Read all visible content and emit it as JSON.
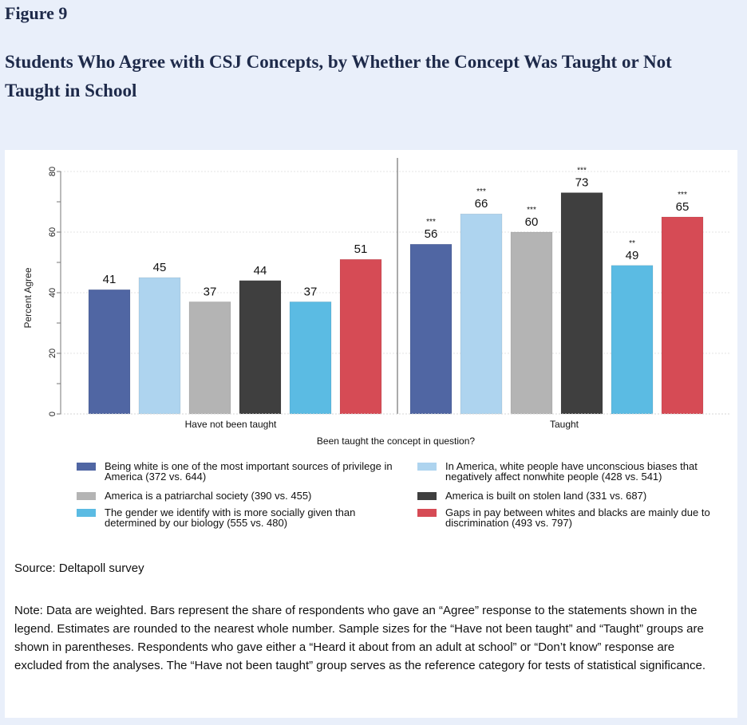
{
  "figure_label": "Figure 9",
  "figure_title": "Students Who Agree with CSJ Concepts, by Whether the Concept Was Taught or Not Taught in School",
  "chart_data": {
    "type": "bar",
    "ylabel": "Percent Agree",
    "xlabel": "Been taught the concept in question?",
    "ylim": [
      0,
      80
    ],
    "yticks": [
      0,
      20,
      40,
      60,
      80
    ],
    "grid": true,
    "legend_position": "bottom",
    "categories": [
      "Have not been taught",
      "Taught"
    ],
    "series": [
      {
        "name": "Being white is one of the most important sources of privilege in America (372 vs. 644)",
        "color": "#5066a3",
        "values": [
          41,
          56
        ],
        "labels": [
          "41",
          "56"
        ],
        "stars": [
          "",
          "***"
        ]
      },
      {
        "name": "In America, white people have unconscious biases that negatively affect nonwhite people (428 vs. 541)",
        "color": "#aed4ef",
        "values": [
          45,
          66
        ],
        "labels": [
          "45",
          "66"
        ],
        "stars": [
          "",
          "***"
        ]
      },
      {
        "name": "America is a patriarchal society (390 vs. 455)",
        "color": "#b4b4b4",
        "values": [
          37,
          60
        ],
        "labels": [
          "37",
          "60"
        ],
        "stars": [
          "",
          "***"
        ]
      },
      {
        "name": "America is built on stolen land (331 vs. 687)",
        "color": "#3f3f3f",
        "values": [
          44,
          73
        ],
        "labels": [
          "44",
          "73"
        ],
        "stars": [
          "",
          "***"
        ]
      },
      {
        "name": "The gender we identify with is more socially given than determined by our biology (555 vs. 480)",
        "color": "#5bbbe3",
        "values": [
          37,
          49
        ],
        "labels": [
          "37",
          "49"
        ],
        "stars": [
          "",
          "**"
        ]
      },
      {
        "name": "Gaps in pay between whites and blacks are mainly due to discrimination (493 vs. 797)",
        "color": "#d64b55",
        "values": [
          51,
          65
        ],
        "labels": [
          "51",
          "65"
        ],
        "stars": [
          "",
          "***"
        ]
      }
    ]
  },
  "source": "Source: Deltapoll survey",
  "note": "Note: Data are weighted. Bars represent the share of respondents who gave an “Agree” response to the statements shown in the legend. Estimates are rounded to the nearest whole number. Sample sizes for the “Have not been taught” and “Taught” groups are shown in parentheses. Respondents who gave either a “Heard it about from an adult at school” or “Don’t know” response are excluded from the analyses. The “Have not been taught” group serves as the reference category for tests of statistical significance."
}
